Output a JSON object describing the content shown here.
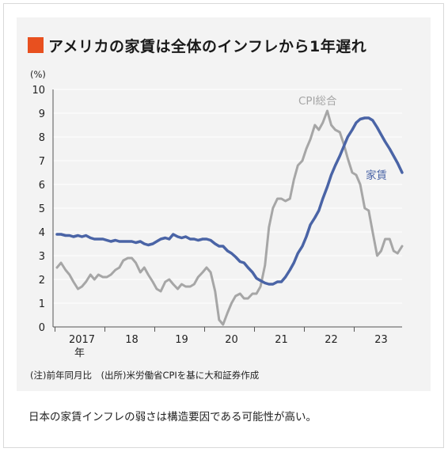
{
  "title": "アメリカの家賃は全体のインフレから1年遅れ",
  "note": "(注)前年同月比　(出所)米労働省CPIを基に大和証券作成",
  "caption": "日本の家賃インフレの弱さは構造要因である可能性が高い。",
  "colors": {
    "accent": "#e8501f",
    "rent": "#4a64a6",
    "cpi": "#a6a6a6",
    "panel": "#f3f3f3"
  },
  "chart_data": {
    "type": "line",
    "ylabel": "(%)",
    "ylim": [
      0,
      10
    ],
    "yticks": [
      "0",
      "1",
      "2",
      "3",
      "4",
      "5",
      "6",
      "7",
      "8",
      "9",
      "10"
    ],
    "xlim": [
      2016.92,
      2023.92
    ],
    "xtick_labels": [
      {
        "x": 2017.5,
        "label": "2017",
        "sub": "年"
      },
      {
        "x": 2018.5,
        "label": "18",
        "sub": ""
      },
      {
        "x": 2019.5,
        "label": "19",
        "sub": ""
      },
      {
        "x": 2020.5,
        "label": "20",
        "sub": ""
      },
      {
        "x": 2021.5,
        "label": "21",
        "sub": ""
      },
      {
        "x": 2022.5,
        "label": "22",
        "sub": ""
      },
      {
        "x": 2023.5,
        "label": "23",
        "sub": ""
      }
    ],
    "series": [
      {
        "name": "CPI総合",
        "color": "#a6a6a6",
        "points": [
          [
            2017.0,
            2.5
          ],
          [
            2017.08,
            2.7
          ],
          [
            2017.17,
            2.4
          ],
          [
            2017.25,
            2.2
          ],
          [
            2017.33,
            1.9
          ],
          [
            2017.42,
            1.6
          ],
          [
            2017.5,
            1.7
          ],
          [
            2017.58,
            1.9
          ],
          [
            2017.67,
            2.2
          ],
          [
            2017.75,
            2.0
          ],
          [
            2017.83,
            2.2
          ],
          [
            2017.92,
            2.1
          ],
          [
            2018.0,
            2.1
          ],
          [
            2018.08,
            2.2
          ],
          [
            2018.17,
            2.4
          ],
          [
            2018.25,
            2.5
          ],
          [
            2018.33,
            2.8
          ],
          [
            2018.42,
            2.9
          ],
          [
            2018.5,
            2.9
          ],
          [
            2018.58,
            2.7
          ],
          [
            2018.67,
            2.3
          ],
          [
            2018.75,
            2.5
          ],
          [
            2018.83,
            2.2
          ],
          [
            2018.92,
            1.9
          ],
          [
            2019.0,
            1.6
          ],
          [
            2019.08,
            1.5
          ],
          [
            2019.17,
            1.9
          ],
          [
            2019.25,
            2.0
          ],
          [
            2019.33,
            1.8
          ],
          [
            2019.42,
            1.6
          ],
          [
            2019.5,
            1.8
          ],
          [
            2019.58,
            1.7
          ],
          [
            2019.67,
            1.7
          ],
          [
            2019.75,
            1.8
          ],
          [
            2019.83,
            2.1
          ],
          [
            2019.92,
            2.3
          ],
          [
            2020.0,
            2.5
          ],
          [
            2020.08,
            2.3
          ],
          [
            2020.17,
            1.5
          ],
          [
            2020.25,
            0.3
          ],
          [
            2020.33,
            0.1
          ],
          [
            2020.42,
            0.6
          ],
          [
            2020.5,
            1.0
          ],
          [
            2020.58,
            1.3
          ],
          [
            2020.67,
            1.4
          ],
          [
            2020.75,
            1.2
          ],
          [
            2020.83,
            1.2
          ],
          [
            2020.92,
            1.4
          ],
          [
            2021.0,
            1.4
          ],
          [
            2021.08,
            1.7
          ],
          [
            2021.17,
            2.6
          ],
          [
            2021.25,
            4.2
          ],
          [
            2021.33,
            5.0
          ],
          [
            2021.42,
            5.4
          ],
          [
            2021.5,
            5.4
          ],
          [
            2021.58,
            5.3
          ],
          [
            2021.67,
            5.4
          ],
          [
            2021.75,
            6.2
          ],
          [
            2021.83,
            6.8
          ],
          [
            2021.92,
            7.0
          ],
          [
            2022.0,
            7.5
          ],
          [
            2022.08,
            7.9
          ],
          [
            2022.17,
            8.5
          ],
          [
            2022.25,
            8.3
          ],
          [
            2022.33,
            8.6
          ],
          [
            2022.42,
            9.1
          ],
          [
            2022.5,
            8.5
          ],
          [
            2022.58,
            8.3
          ],
          [
            2022.67,
            8.2
          ],
          [
            2022.75,
            7.7
          ],
          [
            2022.83,
            7.1
          ],
          [
            2022.92,
            6.5
          ],
          [
            2023.0,
            6.4
          ],
          [
            2023.08,
            6.0
          ],
          [
            2023.17,
            5.0
          ],
          [
            2023.25,
            4.9
          ],
          [
            2023.33,
            4.0
          ],
          [
            2023.42,
            3.0
          ],
          [
            2023.5,
            3.2
          ],
          [
            2023.58,
            3.7
          ],
          [
            2023.67,
            3.7
          ],
          [
            2023.75,
            3.2
          ],
          [
            2023.83,
            3.1
          ],
          [
            2023.92,
            3.4
          ]
        ]
      },
      {
        "name": "家賃",
        "color": "#4a64a6",
        "points": [
          [
            2017.0,
            3.9
          ],
          [
            2017.08,
            3.9
          ],
          [
            2017.17,
            3.85
          ],
          [
            2017.25,
            3.85
          ],
          [
            2017.33,
            3.8
          ],
          [
            2017.42,
            3.85
          ],
          [
            2017.5,
            3.8
          ],
          [
            2017.58,
            3.85
          ],
          [
            2017.67,
            3.75
          ],
          [
            2017.75,
            3.7
          ],
          [
            2017.83,
            3.7
          ],
          [
            2017.92,
            3.7
          ],
          [
            2018.0,
            3.65
          ],
          [
            2018.08,
            3.6
          ],
          [
            2018.17,
            3.65
          ],
          [
            2018.25,
            3.6
          ],
          [
            2018.33,
            3.6
          ],
          [
            2018.42,
            3.6
          ],
          [
            2018.5,
            3.6
          ],
          [
            2018.58,
            3.55
          ],
          [
            2018.67,
            3.6
          ],
          [
            2018.75,
            3.5
          ],
          [
            2018.83,
            3.45
          ],
          [
            2018.92,
            3.5
          ],
          [
            2019.0,
            3.6
          ],
          [
            2019.08,
            3.7
          ],
          [
            2019.17,
            3.75
          ],
          [
            2019.25,
            3.7
          ],
          [
            2019.33,
            3.9
          ],
          [
            2019.42,
            3.8
          ],
          [
            2019.5,
            3.75
          ],
          [
            2019.58,
            3.8
          ],
          [
            2019.67,
            3.7
          ],
          [
            2019.75,
            3.7
          ],
          [
            2019.83,
            3.65
          ],
          [
            2019.92,
            3.7
          ],
          [
            2020.0,
            3.7
          ],
          [
            2020.08,
            3.65
          ],
          [
            2020.17,
            3.5
          ],
          [
            2020.25,
            3.4
          ],
          [
            2020.33,
            3.4
          ],
          [
            2020.42,
            3.2
          ],
          [
            2020.5,
            3.1
          ],
          [
            2020.58,
            2.95
          ],
          [
            2020.67,
            2.75
          ],
          [
            2020.75,
            2.7
          ],
          [
            2020.83,
            2.5
          ],
          [
            2020.92,
            2.3
          ],
          [
            2021.0,
            2.05
          ],
          [
            2021.08,
            1.95
          ],
          [
            2021.17,
            1.85
          ],
          [
            2021.25,
            1.8
          ],
          [
            2021.33,
            1.8
          ],
          [
            2021.42,
            1.9
          ],
          [
            2021.5,
            1.9
          ],
          [
            2021.58,
            2.1
          ],
          [
            2021.67,
            2.4
          ],
          [
            2021.75,
            2.7
          ],
          [
            2021.83,
            3.1
          ],
          [
            2021.92,
            3.4
          ],
          [
            2022.0,
            3.8
          ],
          [
            2022.08,
            4.3
          ],
          [
            2022.17,
            4.6
          ],
          [
            2022.25,
            4.9
          ],
          [
            2022.33,
            5.4
          ],
          [
            2022.42,
            5.9
          ],
          [
            2022.5,
            6.4
          ],
          [
            2022.58,
            6.8
          ],
          [
            2022.67,
            7.2
          ],
          [
            2022.75,
            7.6
          ],
          [
            2022.83,
            8.0
          ],
          [
            2022.92,
            8.3
          ],
          [
            2023.0,
            8.6
          ],
          [
            2023.08,
            8.75
          ],
          [
            2023.17,
            8.8
          ],
          [
            2023.25,
            8.8
          ],
          [
            2023.33,
            8.7
          ],
          [
            2023.42,
            8.4
          ],
          [
            2023.5,
            8.1
          ],
          [
            2023.58,
            7.8
          ],
          [
            2023.67,
            7.5
          ],
          [
            2023.75,
            7.2
          ],
          [
            2023.83,
            6.9
          ],
          [
            2023.92,
            6.5
          ]
        ]
      }
    ],
    "grid": true,
    "legend": "inline"
  }
}
